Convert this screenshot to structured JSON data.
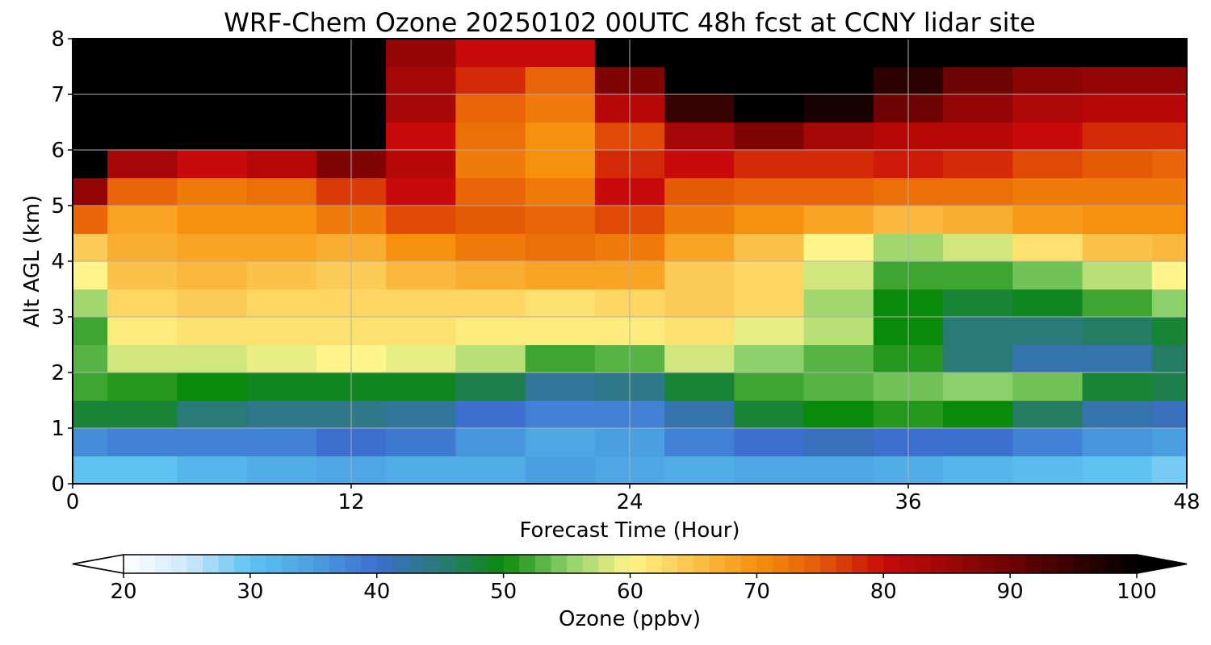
{
  "chart_data": {
    "type": "heatmap",
    "title": "WRF-Chem Ozone  20250102 00UTC 48h fcst at CCNY lidar site",
    "xlabel": "Forecast Time (Hour)",
    "ylabel": "Alt AGL (km)",
    "xlim": [
      0,
      48
    ],
    "ylim": [
      0,
      8
    ],
    "x_ticks": [
      0,
      12,
      24,
      36,
      48
    ],
    "y_ticks": [
      0,
      1,
      2,
      3,
      4,
      5,
      6,
      7,
      8
    ],
    "grid": true,
    "x": [
      0,
      3,
      6,
      9,
      12,
      15,
      18,
      21,
      24,
      27,
      30,
      33,
      36,
      39,
      42,
      45,
      48
    ],
    "y": [
      0.25,
      0.75,
      1.25,
      1.75,
      2.25,
      2.75,
      3.25,
      3.75,
      4.25,
      4.75,
      5.25,
      5.75,
      6.25,
      6.75,
      7.25,
      7.75
    ],
    "values": [
      [
        30,
        30,
        32,
        33,
        34,
        33,
        33,
        35,
        34,
        33,
        34,
        34,
        33,
        32,
        31,
        30,
        29
      ],
      [
        37,
        38,
        38,
        38,
        40,
        39,
        36,
        34,
        35,
        38,
        40,
        41,
        40,
        40,
        38,
        36,
        35
      ],
      [
        48,
        48,
        45,
        44,
        44,
        43,
        40,
        38,
        38,
        42,
        48,
        50,
        51,
        50,
        46,
        42,
        41
      ],
      [
        52,
        51,
        50,
        49,
        49,
        49,
        47,
        43,
        44,
        48,
        52,
        53,
        54,
        55,
        54,
        48,
        47
      ],
      [
        53,
        58,
        58,
        59,
        60,
        59,
        57,
        52,
        53,
        58,
        55,
        53,
        51,
        45,
        42,
        42,
        46
      ],
      [
        52,
        61,
        62,
        62,
        62,
        62,
        61,
        61,
        61,
        62,
        59,
        57,
        50,
        45,
        45,
        46,
        48
      ],
      [
        56,
        63,
        64,
        63,
        63,
        63,
        63,
        62,
        63,
        64,
        63,
        56,
        50,
        48,
        49,
        52,
        55
      ],
      [
        60,
        65,
        66,
        65,
        64,
        66,
        67,
        68,
        68,
        64,
        63,
        58,
        52,
        52,
        54,
        57,
        60
      ],
      [
        64,
        67,
        68,
        68,
        67,
        70,
        72,
        73,
        72,
        68,
        65,
        60,
        56,
        58,
        62,
        65,
        66
      ],
      [
        74,
        68,
        70,
        70,
        72,
        76,
        75,
        74,
        76,
        72,
        70,
        68,
        66,
        67,
        69,
        70,
        70
      ],
      [
        86,
        74,
        72,
        73,
        77,
        80,
        74,
        72,
        80,
        75,
        74,
        74,
        73,
        73,
        72,
        72,
        72
      ],
      [
        100,
        84,
        80,
        82,
        88,
        82,
        72,
        70,
        78,
        80,
        78,
        78,
        79,
        78,
        76,
        75,
        74
      ],
      [
        100,
        100,
        100,
        100,
        100,
        80,
        73,
        70,
        76,
        84,
        88,
        84,
        82,
        82,
        80,
        78,
        78
      ],
      [
        100,
        100,
        100,
        100,
        100,
        84,
        74,
        72,
        82,
        95,
        100,
        98,
        90,
        86,
        83,
        82,
        82
      ],
      [
        100,
        100,
        100,
        100,
        100,
        84,
        78,
        74,
        88,
        100,
        100,
        100,
        96,
        90,
        87,
        86,
        86
      ],
      [
        100,
        100,
        100,
        100,
        100,
        86,
        80,
        80,
        100,
        100,
        100,
        100,
        100,
        100,
        100,
        100,
        100
      ]
    ],
    "colorbar": {
      "label": "Ozone  (ppbv)",
      "min": 20,
      "max": 100,
      "ticks": [
        20,
        30,
        40,
        50,
        60,
        70,
        80,
        90,
        100
      ],
      "orientation": "horizontal",
      "extend": "both",
      "colors": {
        "20": "#ffffff",
        "25": "#cfe9fb",
        "30": "#5ec3f2",
        "35": "#4a9fe0",
        "40": "#3d6fcf",
        "45": "#2a7a78",
        "50": "#0a8a0a",
        "55": "#8bd06a",
        "60": "#fff58a",
        "65": "#fbc24a",
        "70": "#f7900d",
        "75": "#e55a05",
        "80": "#c80a0a",
        "85": "#9e0606",
        "90": "#6e0303",
        "95": "#360101",
        "100": "#000000"
      }
    }
  }
}
